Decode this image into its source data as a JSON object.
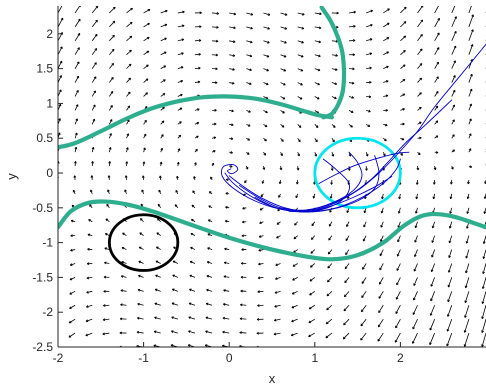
{
  "chart_data": {
    "type": "line",
    "title": "",
    "xlabel": "x",
    "ylabel": "y",
    "xlim": [
      -2,
      3
    ],
    "ylim": [
      -2.5,
      2.4
    ],
    "xticks": [
      -2,
      -1,
      0,
      1,
      2
    ],
    "xtick_labels": [
      "-2",
      "-1",
      "0",
      "1",
      "2"
    ],
    "yticks": [
      -2.5,
      -2,
      -1.5,
      -1,
      -0.5,
      0,
      0.5,
      1,
      1.5,
      2
    ],
    "ytick_labels": [
      "-2.5",
      "-2",
      "-1.5",
      "-1",
      "-0.5",
      "0",
      "0.5",
      "1",
      "1.5",
      "2"
    ],
    "grid": false,
    "legend": "none",
    "vector_field": {
      "description": "quiver",
      "x_range": [
        -2,
        3
      ],
      "y_range": [
        -2.5,
        2.4
      ],
      "step": 0.2,
      "color": "#000000"
    },
    "series": [
      {
        "style": "thick-curve",
        "color": "#2eae8e",
        "x": [
          -2.0,
          -1.8,
          -1.5,
          -1.2,
          -0.9,
          -0.6,
          -0.3,
          0.0,
          0.3,
          0.6,
          0.9,
          1.05,
          1.2
        ],
        "y": [
          0.37,
          0.43,
          0.6,
          0.78,
          0.93,
          1.03,
          1.09,
          1.1,
          1.07,
          0.99,
          0.88,
          0.83,
          0.8
        ]
      },
      {
        "style": "thick-curve",
        "color": "#2eae8e",
        "x": [
          1.08,
          1.2,
          1.31,
          1.34,
          1.33,
          1.28,
          1.2,
          1.1
        ],
        "y": [
          2.38,
          2.15,
          1.8,
          1.5,
          1.2,
          1.0,
          0.85,
          0.8
        ]
      },
      {
        "style": "thick-curve",
        "color": "#2eae8e",
        "x": [
          -2.0,
          -1.85,
          -1.65,
          -1.45,
          -1.2,
          -0.9,
          -0.5,
          0.0,
          0.5,
          0.9,
          1.2,
          1.5,
          1.8,
          2.05,
          2.3,
          2.6,
          3.0
        ],
        "y": [
          -0.78,
          -0.55,
          -0.43,
          -0.41,
          -0.45,
          -0.55,
          -0.72,
          -0.93,
          -1.1,
          -1.2,
          -1.24,
          -1.18,
          -1.0,
          -0.75,
          -0.6,
          -0.62,
          -0.78
        ]
      },
      {
        "style": "circle",
        "color": "#000000",
        "center": [
          -1.0,
          -1.0
        ],
        "radius": 0.4
      },
      {
        "style": "circle",
        "color": "#00e5ee",
        "center": [
          1.5,
          0.0
        ],
        "radius": 0.5
      },
      {
        "style": "trajectory",
        "color": "#0000cc",
        "x": [
          3.0,
          2.7,
          2.4,
          2.2,
          1.95,
          1.75,
          1.5,
          1.2,
          0.9,
          0.6,
          0.3,
          0.05,
          -0.08,
          -0.07,
          0.05,
          0.1,
          0.03,
          -0.02,
          0.02
        ],
        "y": [
          1.85,
          1.4,
          0.95,
          0.6,
          0.25,
          0.0,
          -0.25,
          -0.45,
          -0.55,
          -0.52,
          -0.4,
          -0.22,
          -0.05,
          0.09,
          0.12,
          0.05,
          -0.01,
          0.03,
          0.06
        ]
      },
      {
        "style": "trajectory",
        "color": "#0000cc",
        "x": [
          2.6,
          2.3,
          2.05,
          1.85,
          1.65,
          1.4,
          1.1,
          0.8,
          0.5,
          0.25,
          0.05,
          -0.05
        ],
        "y": [
          1.05,
          0.7,
          0.42,
          0.15,
          -0.1,
          -0.32,
          -0.48,
          -0.55,
          -0.48,
          -0.33,
          -0.15,
          0.0
        ]
      },
      {
        "style": "trajectory",
        "color": "#0000cc",
        "x": [
          2.0,
          1.95,
          1.8,
          1.55,
          1.25,
          0.95,
          0.65,
          0.38,
          0.15,
          0.0
        ],
        "y": [
          0.2,
          0.05,
          -0.15,
          -0.35,
          -0.5,
          -0.55,
          -0.5,
          -0.36,
          -0.18,
          -0.04
        ]
      },
      {
        "style": "trajectory",
        "color": "#0000cc",
        "x": [
          1.4,
          1.5,
          1.55,
          1.45,
          1.2,
          0.9,
          0.6,
          0.35,
          0.12
        ],
        "y": [
          0.3,
          0.15,
          -0.05,
          -0.25,
          -0.43,
          -0.53,
          -0.5,
          -0.36,
          -0.18
        ]
      },
      {
        "style": "trajectory",
        "color": "#0000cc",
        "x": [
          1.1,
          1.25,
          1.4,
          1.35,
          1.15,
          0.85,
          0.55,
          0.3
        ],
        "y": [
          0.2,
          0.05,
          -0.15,
          -0.35,
          -0.5,
          -0.56,
          -0.5,
          -0.35
        ]
      },
      {
        "style": "trajectory",
        "color": "#0000cc",
        "x": [
          1.7,
          1.75,
          1.7,
          1.5,
          1.2,
          0.9,
          0.6
        ],
        "y": [
          0.25,
          0.0,
          -0.22,
          -0.4,
          -0.52,
          -0.56,
          -0.5
        ]
      },
      {
        "style": "trajectory",
        "color": "#0000cc",
        "x": [
          1.05,
          1.2,
          1.45,
          1.7,
          1.95,
          2.1
        ],
        "y": [
          -0.15,
          -0.05,
          0.1,
          0.2,
          0.28,
          0.3
        ]
      },
      {
        "style": "trajectory",
        "color": "#0000cc",
        "x": [
          1.9,
          1.7,
          1.45,
          1.2,
          0.95,
          0.7
        ],
        "y": [
          -0.05,
          -0.2,
          -0.35,
          -0.47,
          -0.55,
          -0.55
        ]
      }
    ]
  }
}
